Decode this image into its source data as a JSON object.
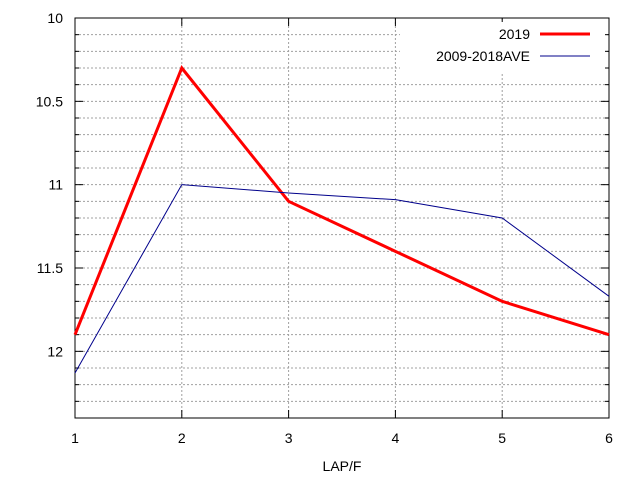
{
  "chart_data": {
    "type": "line",
    "title": "",
    "xlabel": "LAP/F",
    "ylabel": "",
    "x": [
      1,
      2,
      3,
      4,
      5,
      6
    ],
    "xlim": [
      1,
      6
    ],
    "ylim": [
      10,
      12.4
    ],
    "y_reversed": true,
    "x_ticks": [
      "1",
      "2",
      "3",
      "4",
      "5",
      "6"
    ],
    "y_ticks": [
      10,
      10.5,
      11,
      11.5,
      12
    ],
    "y_tick_labels": [
      "10",
      "10.5",
      "11",
      "11.5",
      "12"
    ],
    "y_minor_step": 0.1,
    "grid": true,
    "legend_position": "top-right",
    "series": [
      {
        "name": "2019",
        "values": [
          11.9,
          10.3,
          11.1,
          11.4,
          11.7,
          11.9
        ],
        "color": "#ff0000"
      },
      {
        "name": "2009-2018AVE",
        "values": [
          12.13,
          11.0,
          11.05,
          11.09,
          11.2,
          11.67
        ],
        "color": "#00008b"
      }
    ]
  }
}
